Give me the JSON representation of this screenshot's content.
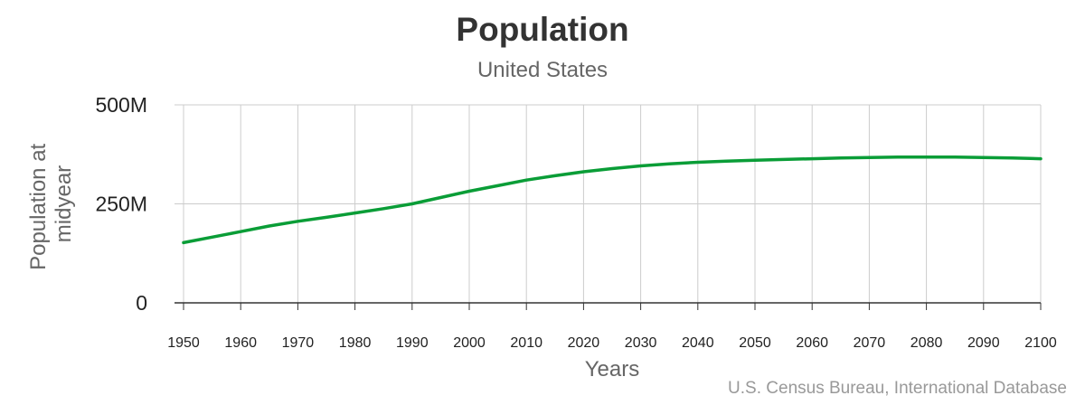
{
  "chart_data": {
    "type": "line",
    "title": "Population",
    "subtitle": "United States",
    "xlabel": "Years",
    "ylabel": "Population at midyear",
    "ylabel_lines": [
      "Population at",
      "midyear"
    ],
    "xlim": [
      1950,
      2100
    ],
    "ylim": [
      0,
      500
    ],
    "x_ticks": [
      1950,
      1960,
      1970,
      1980,
      1990,
      2000,
      2010,
      2020,
      2030,
      2040,
      2050,
      2060,
      2070,
      2080,
      2090,
      2100
    ],
    "y_ticks": [
      0,
      250,
      500
    ],
    "y_tick_labels": [
      "0",
      "250M",
      "500M"
    ],
    "grid": true,
    "legend": "none",
    "series": [
      {
        "color": "#0a9d37",
        "x": [
          1950,
          1955,
          1960,
          1965,
          1970,
          1975,
          1980,
          1985,
          1990,
          1995,
          2000,
          2005,
          2010,
          2015,
          2020,
          2025,
          2030,
          2035,
          2040,
          2045,
          2050,
          2055,
          2060,
          2065,
          2070,
          2075,
          2080,
          2085,
          2090,
          2095,
          2100
        ],
        "values": [
          152,
          166,
          180,
          194,
          206,
          216,
          227,
          238,
          250,
          266,
          282,
          296,
          310,
          321,
          331,
          339,
          346,
          351,
          355,
          358,
          360,
          362,
          364,
          366,
          367,
          368,
          368,
          368,
          367,
          366,
          364
        ]
      }
    ]
  },
  "source": "U.S. Census Bureau, International Database"
}
